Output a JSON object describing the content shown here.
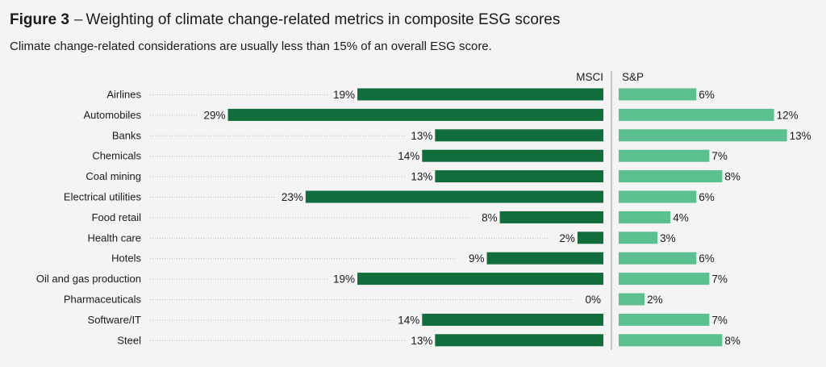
{
  "header": {
    "figure_label": "Figure 3",
    "separator": "–",
    "title": "Weighting of climate change-related metrics in composite ESG scores",
    "subtitle": "Climate change-related considerations are usually less than 15% of an overall ESG score."
  },
  "colors": {
    "msci": "#116d3c",
    "sp": "#5cbf8f",
    "background": "#f4f4f4",
    "leader": "#b5b5b5",
    "divider": "#9a9a9a"
  },
  "chart_data": {
    "type": "bar",
    "orientation": "horizontal",
    "title": "Weighting of climate change-related metrics in composite ESG scores",
    "subtitle": "Climate change-related considerations are usually less than 15% of an overall ESG score.",
    "value_suffix": "%",
    "categories": [
      "Airlines",
      "Automobiles",
      "Banks",
      "Chemicals",
      "Coal mining",
      "Electrical utilities",
      "Food retail",
      "Health care",
      "Hotels",
      "Oil and gas production",
      "Pharmaceuticals",
      "Software/IT",
      "Steel"
    ],
    "series": [
      {
        "name": "MSCI",
        "values": [
          19,
          29,
          13,
          14,
          13,
          23,
          8,
          2,
          9,
          19,
          0,
          14,
          13
        ]
      },
      {
        "name": "S&P",
        "values": [
          6,
          12,
          13,
          7,
          8,
          6,
          4,
          3,
          6,
          7,
          2,
          7,
          8
        ]
      }
    ],
    "grid": false,
    "legend": "column headers"
  }
}
